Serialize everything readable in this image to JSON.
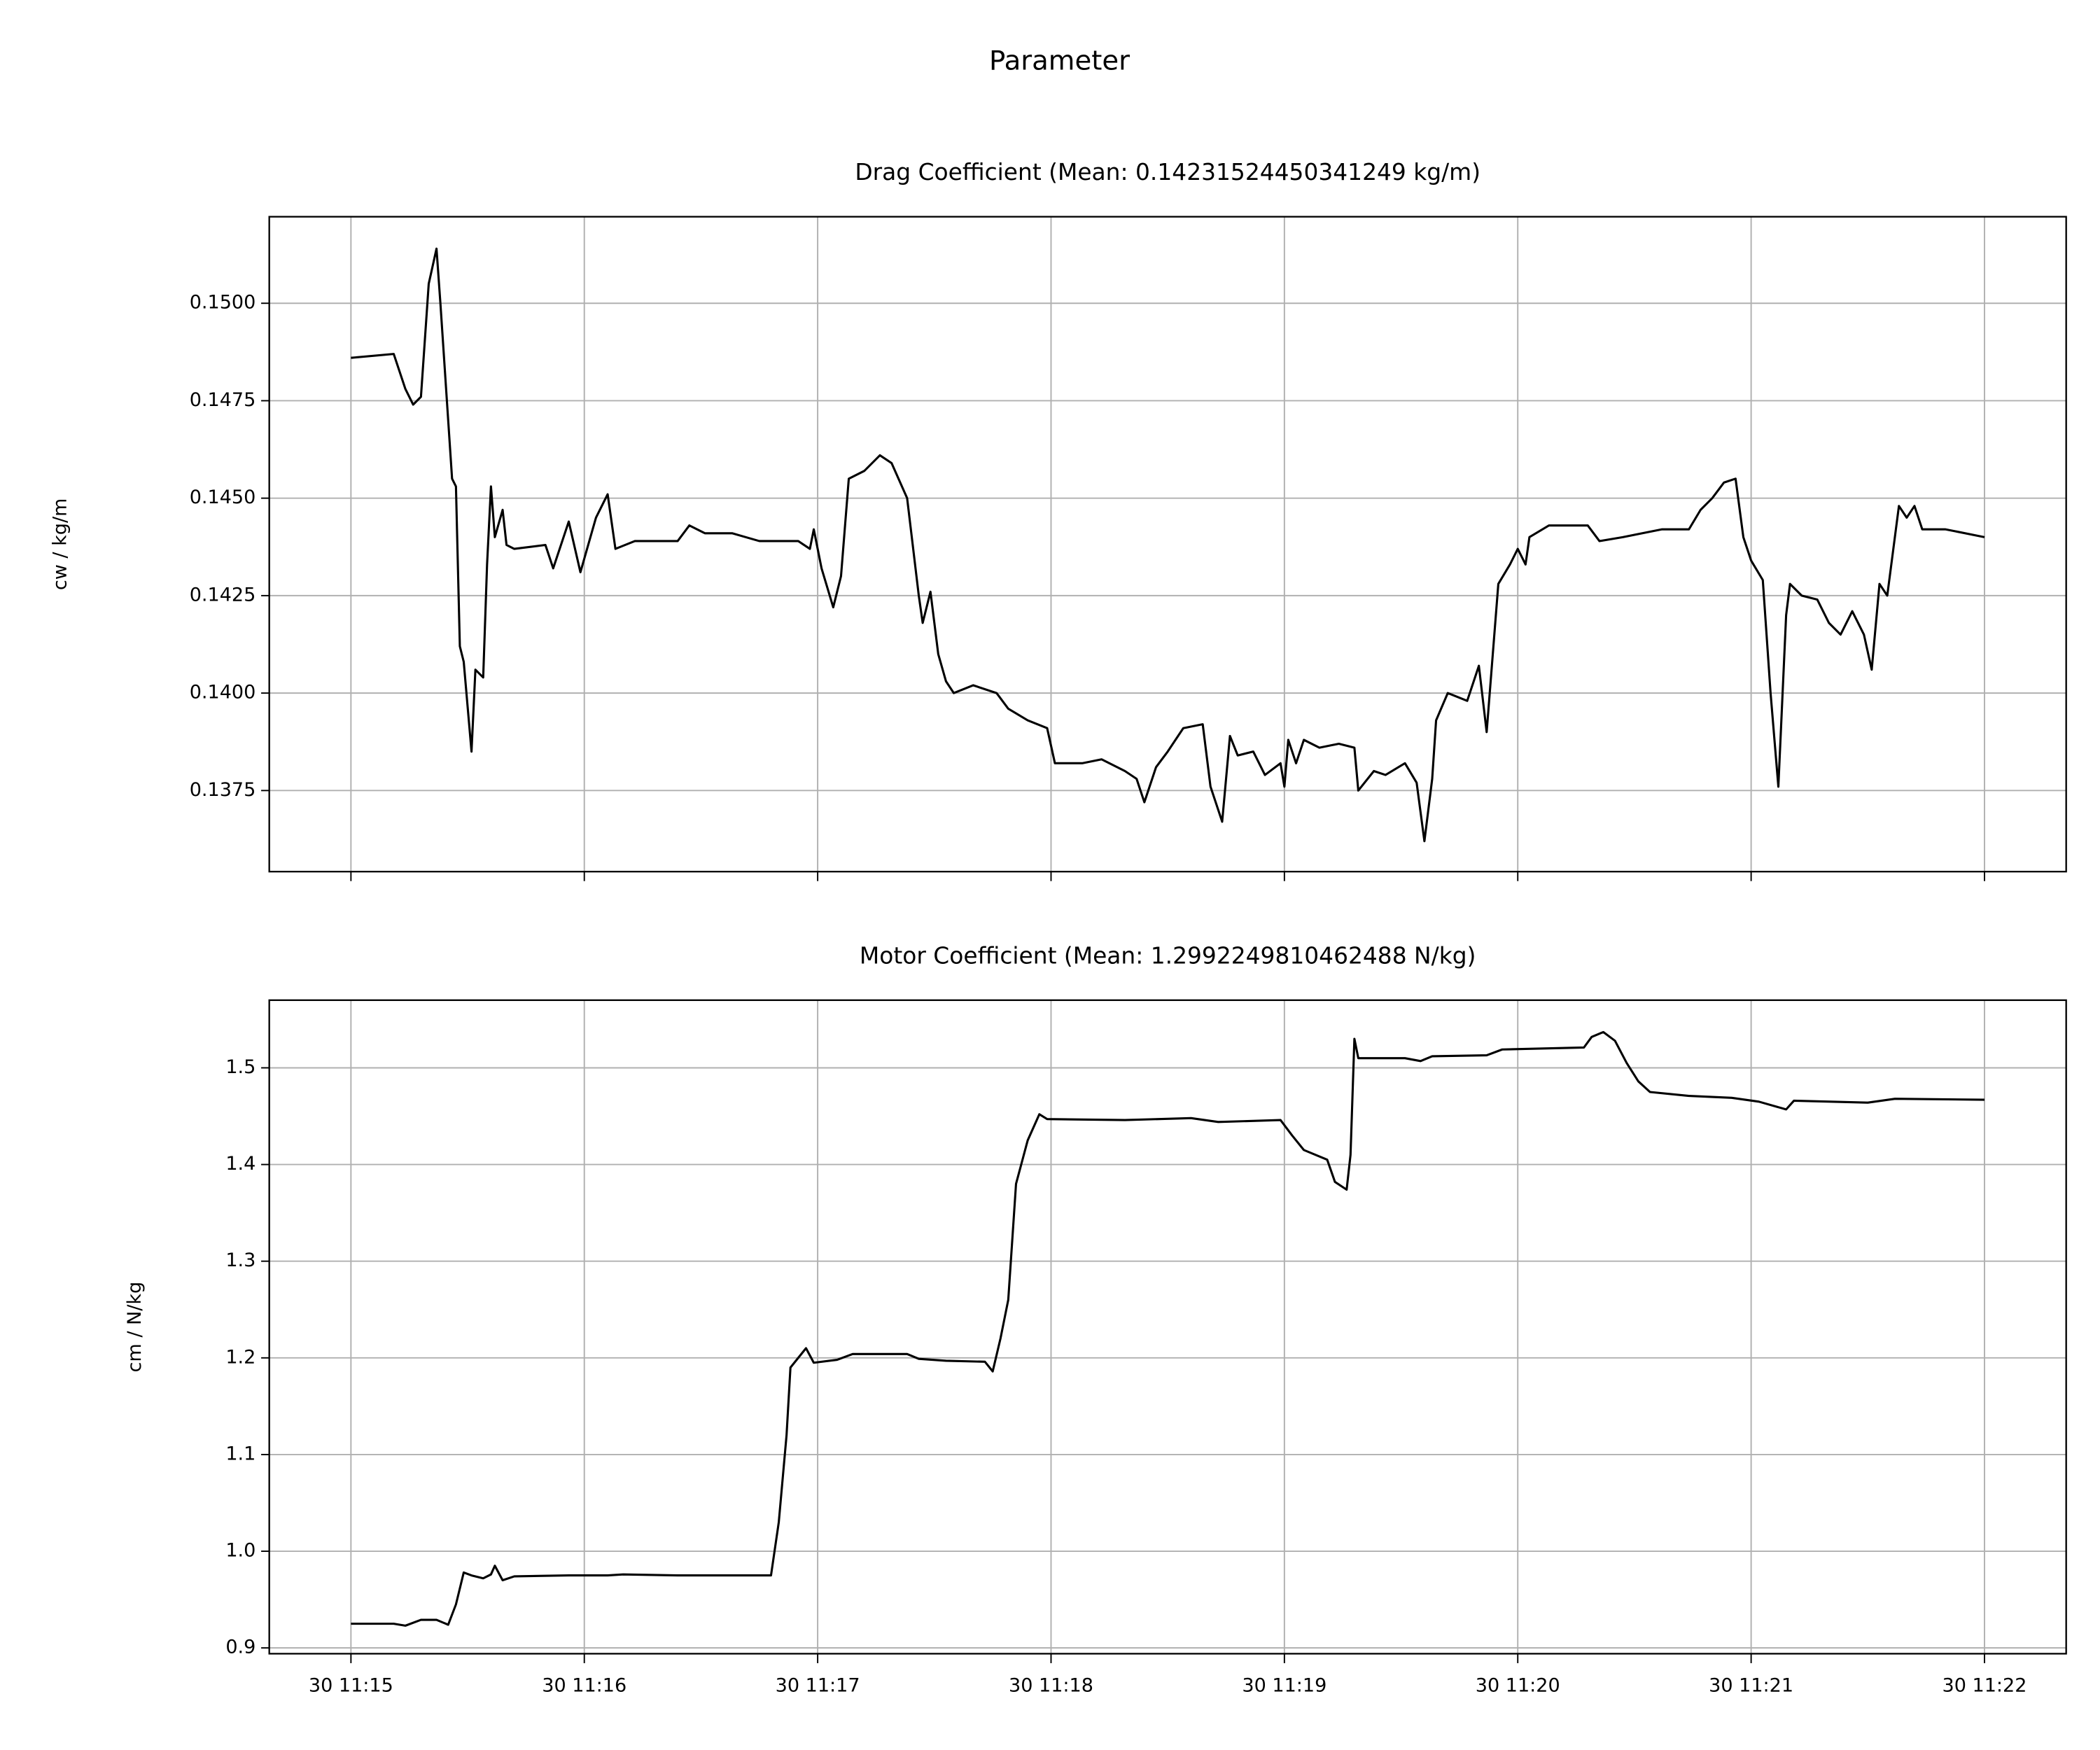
{
  "title": "Parameter",
  "chart_data": [
    {
      "type": "line",
      "title": "Drag Coefficient (Mean: 0.14231524450341249 kg/m)",
      "y_label": "cw / kg/m",
      "color": "#000000",
      "grid": true,
      "xlim": [
        "30 11:14:39",
        "30 11:22:21"
      ],
      "ylim": [
        0.13542,
        0.15222
      ],
      "yticks": [
        0.1375,
        {
          "value": 0.14,
          "label": "0.1400"
        },
        0.1425,
        {
          "value": 0.145,
          "label": "0.1450"
        },
        0.1475,
        {
          "value": 0.15,
          "label": "0.1500"
        }
      ],
      "x": [
        "30 11:15:00",
        "30 11:15:11",
        "30 11:15:14",
        "30 11:15:16",
        "30 11:15:18",
        "30 11:15:20",
        "30 11:15:22",
        "30 11:15:23",
        "30 11:15:25",
        "30 11:15:26",
        "30 11:15:27",
        "30 11:15:28",
        "30 11:15:29",
        "30 11:15:31",
        "30 11:15:32",
        "30 11:15:34",
        "30 11:15:35",
        "30 11:15:36",
        "30 11:15:37",
        "30 11:15:39",
        "30 11:15:40",
        "30 11:15:42",
        "30 11:15:50",
        "30 11:15:52",
        "30 11:15:56",
        "30 11:15:59",
        "30 11:16:03",
        "30 11:16:06",
        "30 11:16:08",
        "30 11:16:13",
        "30 11:16:24",
        "30 11:16:27",
        "30 11:16:31",
        "30 11:16:38",
        "30 11:16:45",
        "30 11:16:55",
        "30 11:16:58",
        "30 11:16:59",
        "30 11:17:01",
        "30 11:17:04",
        "30 11:17:06",
        "30 11:17:08",
        "30 11:17:12",
        "30 11:17:16",
        "30 11:17:19",
        "30 11:17:23",
        "30 11:17:26",
        "30 11:17:27",
        "30 11:17:29",
        "30 11:17:31",
        "30 11:17:33",
        "30 11:17:35",
        "30 11:17:40",
        "30 11:17:46",
        "30 11:17:49",
        "30 11:17:54",
        "30 11:17:59",
        "30 11:18:01",
        "30 11:18:08",
        "30 11:18:13",
        "30 11:18:19",
        "30 11:18:22",
        "30 11:18:24",
        "30 11:18:27",
        "30 11:18:30",
        "30 11:18:34",
        "30 11:18:39",
        "30 11:18:41",
        "30 11:18:44",
        "30 11:18:46",
        "30 11:18:48",
        "30 11:18:52",
        "30 11:18:55",
        "30 11:18:59",
        "30 11:19:00",
        "30 11:19:01",
        "30 11:19:03",
        "30 11:19:05",
        "30 11:19:09",
        "30 11:19:14",
        "30 11:19:18",
        "30 11:19:19",
        "30 11:19:23",
        "30 11:19:26",
        "30 11:19:31",
        "30 11:19:34",
        "30 11:19:36",
        "30 11:19:38",
        "30 11:19:39",
        "30 11:19:42",
        "30 11:19:47",
        "30 11:19:50",
        "30 11:19:52",
        "30 11:19:55",
        "30 11:19:58",
        "30 11:20:00",
        "30 11:20:02",
        "30 11:20:03",
        "30 11:20:08",
        "30 11:20:18",
        "30 11:20:21",
        "30 11:20:27",
        "30 11:20:37",
        "30 11:20:44",
        "30 11:20:47",
        "30 11:20:50",
        "30 11:20:53",
        "30 11:20:56",
        "30 11:20:58",
        "30 11:21:00",
        "30 11:21:03",
        "30 11:21:05",
        "30 11:21:07",
        "30 11:21:09",
        "30 11:21:10",
        "30 11:21:13",
        "30 11:21:17",
        "30 11:21:20",
        "30 11:21:23",
        "30 11:21:26",
        "30 11:21:29",
        "30 11:21:31",
        "30 11:21:33",
        "30 11:21:35",
        "30 11:21:38",
        "30 11:21:40",
        "30 11:21:42",
        "30 11:21:44",
        "30 11:21:50",
        "30 11:22:00"
      ],
      "values": [
        0.1486,
        0.1487,
        0.1478,
        0.1474,
        0.1476,
        0.1505,
        0.1514,
        0.15,
        0.147,
        0.1455,
        0.1453,
        0.1412,
        0.1408,
        0.1385,
        0.1406,
        0.1404,
        0.1433,
        0.1453,
        0.144,
        0.1447,
        0.1438,
        0.1437,
        0.1438,
        0.1432,
        0.1444,
        0.1431,
        0.1445,
        0.1451,
        0.1437,
        0.1439,
        0.1439,
        0.1443,
        0.1441,
        0.1441,
        0.1439,
        0.1439,
        0.1437,
        0.1442,
        0.1432,
        0.1422,
        0.143,
        0.1455,
        0.1457,
        0.1461,
        0.1459,
        0.145,
        0.1425,
        0.1418,
        0.1426,
        0.141,
        0.1403,
        0.14,
        0.1402,
        0.14,
        0.1396,
        0.1393,
        0.1391,
        0.1382,
        0.1382,
        0.1383,
        0.138,
        0.1378,
        0.1372,
        0.1381,
        0.1385,
        0.1391,
        0.1392,
        0.1376,
        0.1367,
        0.1389,
        0.1384,
        0.1385,
        0.1379,
        0.1382,
        0.1376,
        0.1388,
        0.1382,
        0.1388,
        0.1386,
        0.1387,
        0.1386,
        0.1375,
        0.138,
        0.1379,
        0.1382,
        0.1377,
        0.1362,
        0.1378,
        0.1393,
        0.14,
        0.1398,
        0.1407,
        0.139,
        0.1428,
        0.1433,
        0.1437,
        0.1433,
        0.144,
        0.1443,
        0.1443,
        0.1439,
        0.144,
        0.1442,
        0.1442,
        0.1447,
        0.145,
        0.1454,
        0.1455,
        0.144,
        0.1434,
        0.1429,
        0.14,
        0.1376,
        0.142,
        0.1428,
        0.1425,
        0.1424,
        0.1418,
        0.1415,
        0.1421,
        0.1415,
        0.1406,
        0.1428,
        0.1425,
        0.1448,
        0.1445,
        0.1448,
        0.1442,
        0.1442,
        0.144
      ]
    },
    {
      "type": "line",
      "title": "Motor Coefficient (Mean: 1.2992249810462488 N/kg)",
      "y_label": "cm / N/kg",
      "color": "#000000",
      "grid": true,
      "xlim": [
        "30 11:14:39",
        "30 11:22:21"
      ],
      "xticks": [
        "30 11:15",
        "30 11:16",
        "30 11:17",
        "30 11:18",
        "30 11:19",
        "30 11:20",
        "30 11:21",
        "30 11:22"
      ],
      "ylim": [
        0.894,
        1.57
      ],
      "yticks": [
        0.9,
        {
          "value": 1.0,
          "label": "1.0"
        },
        1.1,
        1.2,
        1.3,
        1.4,
        1.5
      ],
      "x": [
        "30 11:15:00",
        "30 11:15:11",
        "30 11:15:14",
        "30 11:15:18",
        "30 11:15:22",
        "30 11:15:25",
        "30 11:15:27",
        "30 11:15:29",
        "30 11:15:31",
        "30 11:15:34",
        "30 11:15:36",
        "30 11:15:37",
        "30 11:15:39",
        "30 11:15:42",
        "30 11:15:56",
        "30 11:16:06",
        "30 11:16:10",
        "30 11:16:24",
        "30 11:16:48",
        "30 11:16:50",
        "30 11:16:52",
        "30 11:16:53",
        "30 11:16:57",
        "30 11:16:59",
        "30 11:17:05",
        "30 11:17:09",
        "30 11:17:23",
        "30 11:17:26",
        "30 11:17:33",
        "30 11:17:43",
        "30 11:17:45",
        "30 11:17:47",
        "30 11:17:49",
        "30 11:17:51",
        "30 11:17:54",
        "30 11:17:57",
        "30 11:17:59",
        "30 11:18:19",
        "30 11:18:36",
        "30 11:18:43",
        "30 11:18:59",
        "30 11:19:02",
        "30 11:19:05",
        "30 11:19:11",
        "30 11:19:13",
        "30 11:19:16",
        "30 11:19:17",
        "30 11:19:18",
        "30 11:19:19",
        "30 11:19:31",
        "30 11:19:35",
        "30 11:19:38",
        "30 11:19:52",
        "30 11:19:56",
        "30 11:20:17",
        "30 11:20:19",
        "30 11:20:22",
        "30 11:20:25",
        "30 11:20:28",
        "30 11:20:31",
        "30 11:20:34",
        "30 11:20:44",
        "30 11:20:55",
        "30 11:21:02",
        "30 11:21:09",
        "30 11:21:11",
        "30 11:21:30",
        "30 11:21:37",
        "30 11:22:00"
      ],
      "values": [
        0.925,
        0.925,
        0.923,
        0.929,
        0.929,
        0.924,
        0.945,
        0.978,
        0.975,
        0.972,
        0.976,
        0.985,
        0.97,
        0.974,
        0.975,
        0.975,
        0.976,
        0.975,
        0.975,
        1.03,
        1.12,
        1.19,
        1.21,
        1.195,
        1.198,
        1.204,
        1.204,
        1.199,
        1.197,
        1.196,
        1.186,
        1.22,
        1.26,
        1.38,
        1.425,
        1.452,
        1.447,
        1.446,
        1.448,
        1.444,
        1.446,
        1.43,
        1.415,
        1.405,
        1.382,
        1.374,
        1.41,
        1.53,
        1.51,
        1.51,
        1.507,
        1.512,
        1.513,
        1.519,
        1.521,
        1.532,
        1.537,
        1.528,
        1.505,
        1.486,
        1.475,
        1.471,
        1.469,
        1.465,
        1.457,
        1.466,
        1.464,
        1.468,
        1.467
      ]
    }
  ]
}
